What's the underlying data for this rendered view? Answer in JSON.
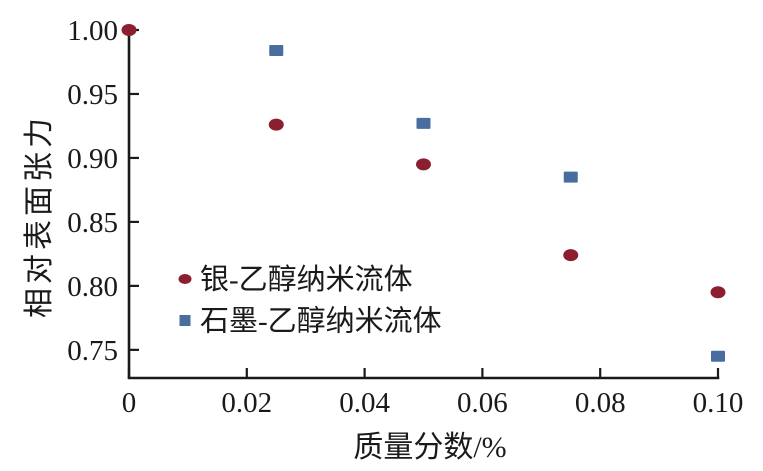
{
  "figure": {
    "background": "#ffffff"
  },
  "chart_data": {
    "type": "scatter",
    "title": "",
    "xlabel": "质量分数/%",
    "ylabel": "相对表面张力",
    "xlim": [
      0,
      0.1
    ],
    "ylim": [
      0.728,
      1.0
    ],
    "x_ticks": [
      0,
      0.02,
      0.04,
      0.06,
      0.08,
      0.1
    ],
    "x_tick_labels": [
      "0",
      "0.02",
      "0.04",
      "0.06",
      "0.08",
      "0.10"
    ],
    "y_ticks": [
      0.75,
      0.8,
      0.85,
      0.9,
      0.95,
      1.0
    ],
    "y_tick_labels": [
      "0.75",
      "0.80",
      "0.85",
      "0.90",
      "0.95",
      "1.00"
    ],
    "grid": false,
    "legend_position": "inside-middle-left",
    "axis_color": "#1a1a1a",
    "series": [
      {
        "id": "silver-ethanol",
        "name": "银-乙醇纳米流体",
        "marker": "circle",
        "color": "#8b1f2f",
        "x": [
          0,
          0.025,
          0.05,
          0.075,
          0.1
        ],
        "y": [
          1.0,
          0.926,
          0.895,
          0.824,
          0.795
        ]
      },
      {
        "id": "graphite-ethanol",
        "name": "石墨-乙醇纳米流体",
        "marker": "square",
        "color": "#4a6d9f",
        "x": [
          0.025,
          0.05,
          0.075,
          0.1
        ],
        "y": [
          0.984,
          0.927,
          0.885,
          0.745
        ]
      }
    ]
  }
}
